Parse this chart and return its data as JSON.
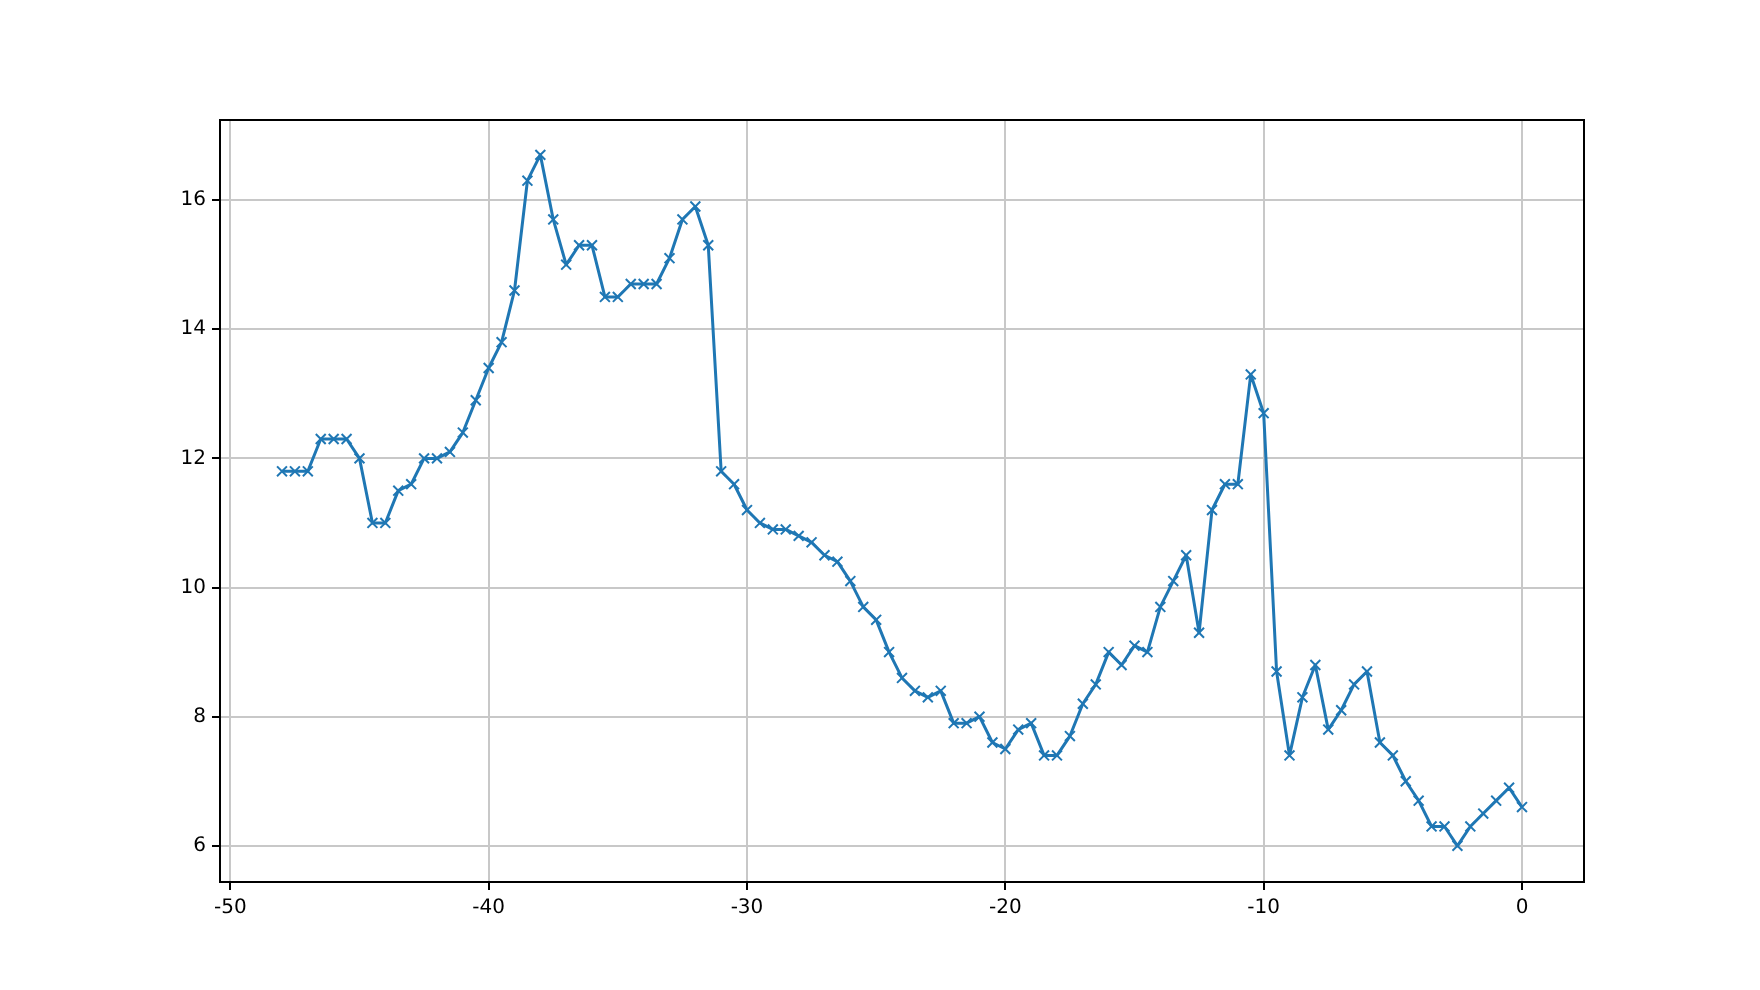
{
  "chart_data": {
    "type": "line",
    "x": [
      -48,
      -47.5,
      -47,
      -46.5,
      -46,
      -45.5,
      -45,
      -44.5,
      -44,
      -43.5,
      -43,
      -42.5,
      -42,
      -41.5,
      -41,
      -40.5,
      -40,
      -39.5,
      -39,
      -38.5,
      -38,
      -37.5,
      -37,
      -36.5,
      -36,
      -35.5,
      -35,
      -34.5,
      -34,
      -33.5,
      -33,
      -32.5,
      -32,
      -31.5,
      -31,
      -30.5,
      -30,
      -29.5,
      -29,
      -28.5,
      -28,
      -27.5,
      -27,
      -26.5,
      -26,
      -25.5,
      -25,
      -24.5,
      -24,
      -23.5,
      -23,
      -22.5,
      -22,
      -21.5,
      -21,
      -20.5,
      -20,
      -19.5,
      -19,
      -18.5,
      -18,
      -17.5,
      -17,
      -16.5,
      -16,
      -15.5,
      -15,
      -14.5,
      -14,
      -13.5,
      -13,
      -12.5,
      -12,
      -11.5,
      -11,
      -10.5,
      -10,
      -9.5,
      -9,
      -8.5,
      -8,
      -7.5,
      -7,
      -6.5,
      -6,
      -5.5,
      -5,
      -4.5,
      -4,
      -3.5,
      -3,
      -2.5,
      -2,
      -1.5,
      -1,
      -0.5,
      0
    ],
    "series": [
      {
        "color": "#1f77b4",
        "values": [
          11.8,
          11.8,
          11.8,
          12.3,
          12.3,
          12.3,
          12.0,
          11.0,
          11.0,
          11.5,
          11.6,
          12.0,
          12.0,
          12.1,
          12.4,
          12.9,
          13.4,
          13.8,
          14.6,
          16.3,
          16.7,
          15.7,
          15.0,
          15.3,
          15.3,
          14.5,
          14.5,
          14.7,
          14.7,
          14.7,
          15.1,
          15.7,
          15.9,
          15.3,
          11.8,
          11.6,
          11.2,
          11.0,
          10.9,
          10.9,
          10.8,
          10.7,
          10.5,
          10.4,
          10.1,
          9.7,
          9.5,
          9.0,
          8.6,
          8.4,
          8.3,
          8.4,
          7.9,
          7.9,
          8.0,
          7.6,
          7.5,
          7.8,
          7.9,
          7.4,
          7.4,
          7.7,
          8.2,
          8.5,
          9.0,
          8.8,
          9.1,
          9.0,
          9.7,
          10.1,
          10.5,
          9.3,
          11.2,
          11.6,
          11.6,
          13.3,
          12.7,
          8.7,
          7.4,
          8.3,
          8.8,
          7.8,
          8.1,
          8.5,
          8.7,
          7.6,
          7.4,
          7.0,
          6.7,
          6.3,
          6.3,
          6.0,
          6.3,
          6.5,
          6.7,
          6.9,
          6.6
        ]
      }
    ],
    "xlim": [
      -50.4,
      2.4
    ],
    "ylim": [
      5.44,
      17.24
    ],
    "xticks": [
      -50,
      -40,
      -30,
      -20,
      -10,
      0
    ],
    "yticks": [
      6,
      8,
      10,
      12,
      14,
      16
    ],
    "grid": true,
    "legend": false,
    "marker": "cross",
    "line_style": "solid"
  }
}
